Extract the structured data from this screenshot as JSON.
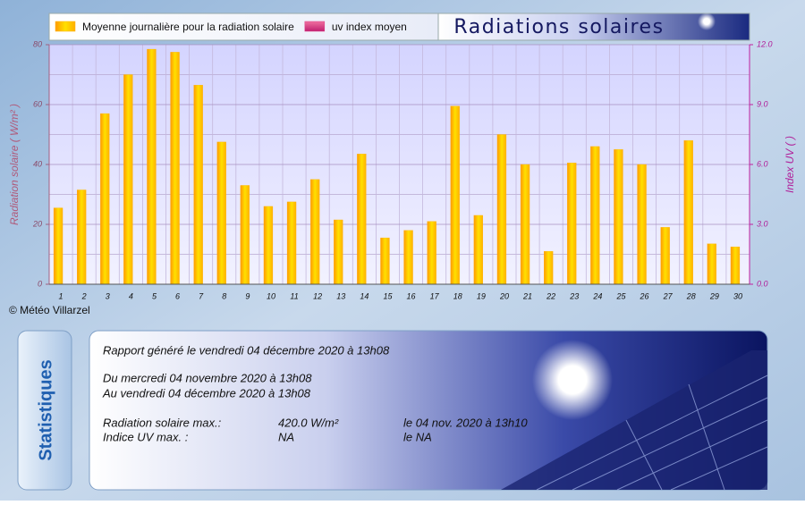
{
  "chart_data": {
    "type": "bar",
    "title": "Radiations solaires",
    "ylabel": "Radiation solaire ( W/m² )",
    "y2label": "Index UV ( )",
    "categories": [
      "1",
      "2",
      "3",
      "4",
      "5",
      "6",
      "7",
      "8",
      "9",
      "10",
      "11",
      "12",
      "13",
      "14",
      "15",
      "16",
      "17",
      "18",
      "19",
      "20",
      "21",
      "22",
      "23",
      "24",
      "25",
      "26",
      "27",
      "28",
      "29",
      "30"
    ],
    "series": [
      {
        "name": "Moyenne journalière pour la radiation solaire",
        "color": "#ffb000",
        "values": [
          25.5,
          31.5,
          57,
          70,
          78.5,
          77.5,
          66.5,
          47.5,
          33,
          26,
          27.5,
          35,
          21.5,
          43.5,
          15.5,
          18,
          21,
          59.5,
          23,
          50,
          40,
          11,
          40.5,
          46,
          45,
          40,
          19,
          48,
          13.5,
          12.5
        ]
      },
      {
        "name": "uv index moyen",
        "color": "#e0408a",
        "axis": "y2",
        "values": [
          null,
          null,
          null,
          null,
          null,
          null,
          null,
          null,
          null,
          null,
          null,
          null,
          null,
          null,
          null,
          null,
          null,
          null,
          null,
          null,
          null,
          null,
          null,
          null,
          null,
          null,
          null,
          null,
          null,
          null
        ]
      }
    ],
    "ylim": [
      0,
      80
    ],
    "yticks": [
      0,
      20,
      40,
      60,
      80
    ],
    "yminorticks": [
      10,
      30,
      50,
      70
    ],
    "y2lim": [
      0,
      12
    ],
    "y2ticks": [
      {
        "value": 0,
        "label": "0.0"
      },
      {
        "value": 3,
        "label": "3.0"
      },
      {
        "value": 6,
        "label": "6.0"
      },
      {
        "value": 9,
        "label": "9.0"
      },
      {
        "value": 12,
        "label": "12.0"
      }
    ],
    "grid": true,
    "legend": "top-left"
  },
  "copyright": "© Météo Villarzel",
  "stats": {
    "tab": "Statistiques",
    "generated": "Rapport généré le vendredi 04 décembre 2020 à 13h08",
    "period_from": "Du mercredi 04 novembre 2020 à 13h08",
    "period_to": "Au vendredi 04 décembre 2020 à 13h08",
    "rows": [
      [
        "Radiation solaire max.:",
        "420.0 W/m²",
        "le 04 nov. 2020 à 13h10"
      ],
      [
        "Indice UV max. :",
        "NA",
        "le NA"
      ]
    ]
  }
}
